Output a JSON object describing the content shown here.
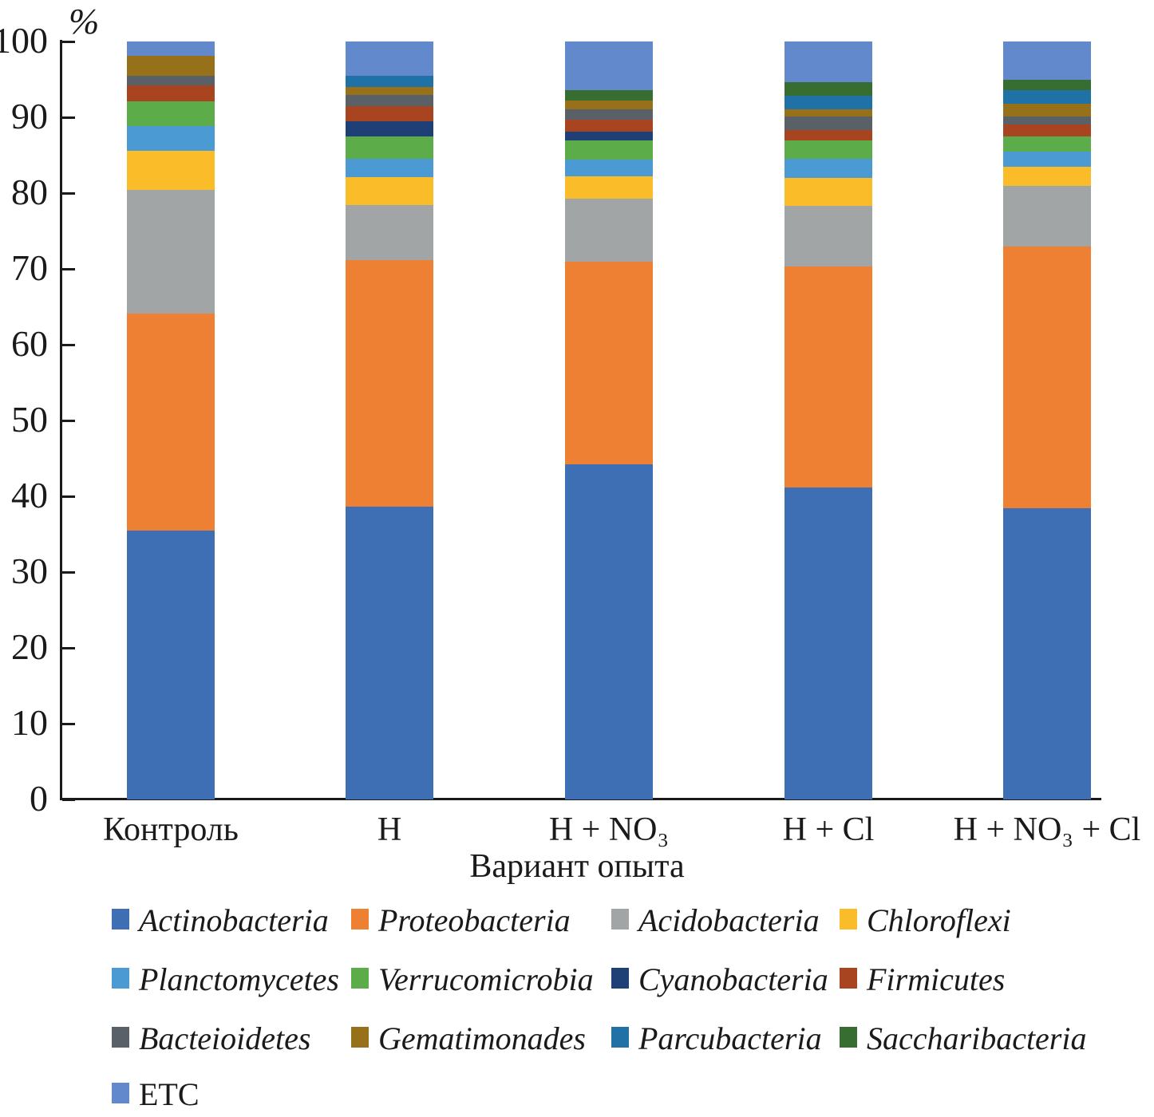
{
  "y_axis": {
    "unit_label": "%",
    "ticks": [
      "100",
      "90",
      "80",
      "70",
      "60",
      "50",
      "40",
      "30",
      "20",
      "10",
      "0"
    ]
  },
  "x_axis": {
    "title": "Вариант опыта",
    "categories": [
      "Контроль",
      "Н",
      "Н + NO₃",
      "Н + Cl",
      "Н + NO₃ + Cl"
    ]
  },
  "chart_data": {
    "type": "bar",
    "subtype": "stacked-percentage",
    "grid": false,
    "legend_position": "bottom",
    "ylabel": "%",
    "xlabel": "Вариант опыта",
    "ylim": [
      0,
      100
    ],
    "categories": [
      "Контроль",
      "Н",
      "Н + NO₃",
      "Н + Cl",
      "Н + NO₃ + Cl"
    ],
    "series": [
      {
        "name": "Actinobacteria",
        "color": "#3E6FB5",
        "italic": true,
        "values": [
          35.5,
          38.6,
          44.2,
          41.2,
          38.4
        ]
      },
      {
        "name": "Proteobacteria",
        "color": "#EE8033",
        "italic": true,
        "values": [
          28.6,
          32.6,
          26.7,
          29.1,
          34.5
        ]
      },
      {
        "name": "Acidobacteria",
        "color": "#A2A5A6",
        "italic": true,
        "values": [
          16.3,
          7.2,
          8.4,
          8.0,
          8.0
        ]
      },
      {
        "name": "Chloroflexi",
        "color": "#FBBC29",
        "italic": true,
        "values": [
          5.2,
          3.7,
          2.9,
          3.7,
          2.6
        ]
      },
      {
        "name": "Planctomycetes",
        "color": "#4C9AD4",
        "italic": true,
        "values": [
          3.2,
          2.4,
          2.2,
          2.5,
          2.0
        ]
      },
      {
        "name": "Verrucomicrobia",
        "color": "#5CAD4A",
        "italic": true,
        "values": [
          3.3,
          3.0,
          2.6,
          2.4,
          2.0
        ]
      },
      {
        "name": "Cyanobacteria",
        "color": "#1F4077",
        "italic": true,
        "values": [
          0,
          2.0,
          1.1,
          0,
          0
        ]
      },
      {
        "name": "Firmicutes",
        "color": "#A8441F",
        "italic": true,
        "values": [
          2.1,
          2.0,
          1.6,
          1.4,
          1.6
        ]
      },
      {
        "name": "Bacteioidetes",
        "color": "#5A6068",
        "italic": true,
        "values": [
          1.3,
          1.5,
          1.4,
          1.8,
          1.0
        ]
      },
      {
        "name": "Gematimonades",
        "color": "#97701A",
        "italic": true,
        "values": [
          2.6,
          1.0,
          1.1,
          1.0,
          1.7
        ]
      },
      {
        "name": "Parcubacteria",
        "color": "#2071A5",
        "italic": true,
        "values": [
          0,
          1.5,
          0,
          1.8,
          1.8
        ]
      },
      {
        "name": "Saccharibacteria",
        "color": "#386D31",
        "italic": true,
        "values": [
          0,
          0,
          1.4,
          1.7,
          1.4
        ]
      },
      {
        "name": "ETC",
        "color": "#6289CB",
        "italic": false,
        "values": [
          1.9,
          4.5,
          6.4,
          5.4,
          5.0
        ]
      }
    ]
  }
}
